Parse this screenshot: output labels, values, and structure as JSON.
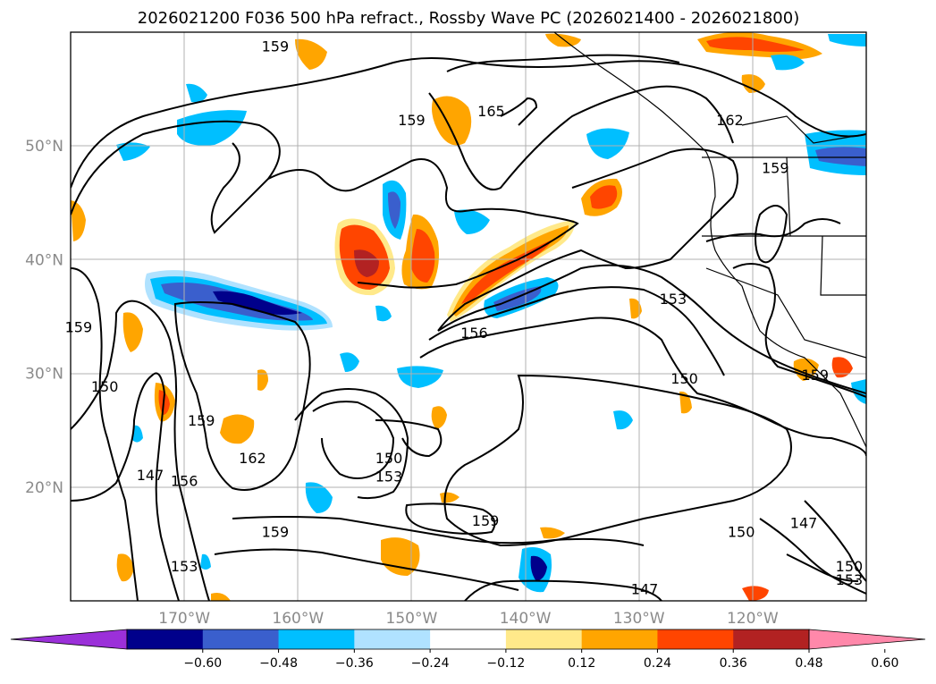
{
  "title": "2026021200 F036 500 hPa refract., Rossby Wave PC (2026021400 - 2026021800)",
  "map": {
    "lon_range": [
      -180,
      -110
    ],
    "lat_range": [
      10,
      60
    ],
    "lon_ticks": [
      {
        "value": -170,
        "label": "170°W"
      },
      {
        "value": -160,
        "label": "160°W"
      },
      {
        "value": -150,
        "label": "150°W"
      },
      {
        "value": -140,
        "label": "140°W"
      },
      {
        "value": -130,
        "label": "130°W"
      },
      {
        "value": -120,
        "label": "120°W"
      }
    ],
    "lat_ticks": [
      {
        "value": 50,
        "label": "50°N"
      },
      {
        "value": 40,
        "label": "40°N"
      },
      {
        "value": 30,
        "label": "30°N"
      },
      {
        "value": 20,
        "label": "20°N"
      }
    ],
    "grid": true
  },
  "colorbar": {
    "levels": [
      -0.6,
      -0.48,
      -0.36,
      -0.24,
      -0.12,
      0.12,
      0.24,
      0.36,
      0.48,
      0.6
    ],
    "tick_labels": [
      "−0.60",
      "−0.48",
      "−0.36",
      "−0.24",
      "−0.12",
      "0.12",
      "0.24",
      "0.36",
      "0.48",
      "0.60"
    ],
    "colors": [
      "#9b30d9",
      "#00008b",
      "#3a5fcd",
      "#00bfff",
      "#b0e2ff",
      "#ffffff",
      "#ffe98a",
      "#ffa500",
      "#ff4500",
      "#b22222",
      "#ff88aa"
    ],
    "extend": "both"
  },
  "contour_labels": [
    {
      "text": "159",
      "lon": -162.0,
      "lat": 58.7
    },
    {
      "text": "159",
      "lon": -150.0,
      "lat": 52.2
    },
    {
      "text": "165",
      "lon": -143.0,
      "lat": 53.0
    },
    {
      "text": "162",
      "lon": -122.0,
      "lat": 52.2
    },
    {
      "text": "159",
      "lon": -118.0,
      "lat": 48.0
    },
    {
      "text": "153",
      "lon": -127.0,
      "lat": 36.5
    },
    {
      "text": "156",
      "lon": -144.5,
      "lat": 33.5
    },
    {
      "text": "150",
      "lon": -126.0,
      "lat": 29.5
    },
    {
      "text": "159",
      "lon": -114.5,
      "lat": 29.8
    },
    {
      "text": "159",
      "lon": -179.3,
      "lat": 34.0
    },
    {
      "text": "150",
      "lon": -177.0,
      "lat": 28.8
    },
    {
      "text": "159",
      "lon": -168.5,
      "lat": 25.8
    },
    {
      "text": "162",
      "lon": -164.0,
      "lat": 22.5
    },
    {
      "text": "147",
      "lon": -173.0,
      "lat": 21.0
    },
    {
      "text": "156",
      "lon": -170.0,
      "lat": 20.5
    },
    {
      "text": "150",
      "lon": -152.0,
      "lat": 22.5
    },
    {
      "text": "153",
      "lon": -152.0,
      "lat": 20.9
    },
    {
      "text": "159",
      "lon": -143.5,
      "lat": 17.0
    },
    {
      "text": "159",
      "lon": -162.0,
      "lat": 16.0
    },
    {
      "text": "153",
      "lon": -170.0,
      "lat": 13.0
    },
    {
      "text": "147",
      "lon": -129.5,
      "lat": 11.0
    },
    {
      "text": "150",
      "lon": -121.0,
      "lat": 16.0
    },
    {
      "text": "147",
      "lon": -115.5,
      "lat": 16.8
    },
    {
      "text": "150",
      "lon": -111.5,
      "lat": 13.0
    },
    {
      "text": "153",
      "lon": -111.5,
      "lat": 11.8
    }
  ]
}
